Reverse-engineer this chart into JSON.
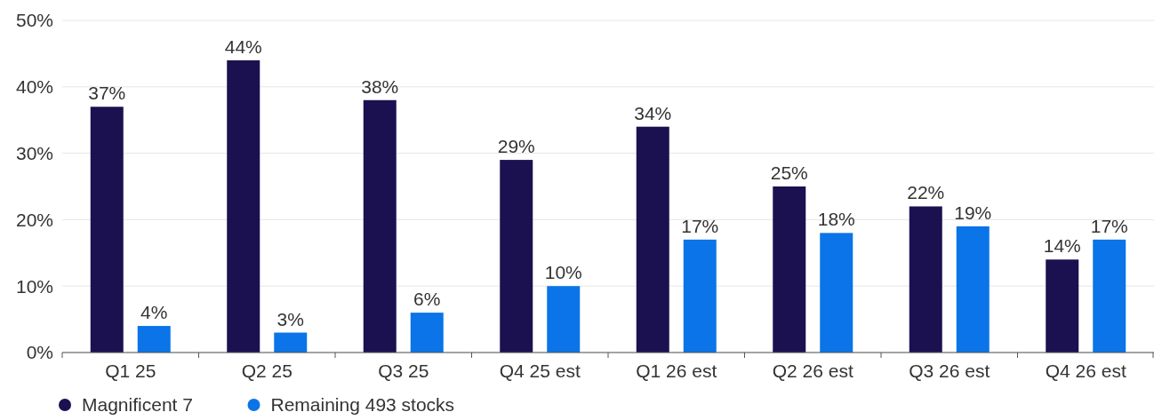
{
  "chart_data": {
    "type": "bar",
    "categories": [
      "Q1 25",
      "Q2 25",
      "Q3 25",
      "Q4 25 est",
      "Q1 26 est",
      "Q2 26 est",
      "Q3 26 est",
      "Q4 26 est"
    ],
    "series": [
      {
        "name": "Magnificent 7",
        "color": "#1b1150",
        "values": [
          37,
          44,
          38,
          29,
          34,
          25,
          22,
          14
        ],
        "value_labels": [
          "37%",
          "44%",
          "38%",
          "29%",
          "34%",
          "25%",
          "22%",
          "14%"
        ]
      },
      {
        "name": "Remaining 493 stocks",
        "color": "#0a74e8",
        "values": [
          4,
          3,
          6,
          10,
          17,
          18,
          19,
          17
        ],
        "value_labels": [
          "4%",
          "3%",
          "6%",
          "10%",
          "17%",
          "18%",
          "19%",
          "17%"
        ]
      }
    ],
    "ylim": [
      0,
      50
    ],
    "yticks": [
      {
        "value": 0,
        "label": "0%"
      },
      {
        "value": 10,
        "label": "10%"
      },
      {
        "value": 20,
        "label": "20%"
      },
      {
        "value": 30,
        "label": "30%"
      },
      {
        "value": 40,
        "label": "40%"
      },
      {
        "value": 50,
        "label": "50%"
      }
    ],
    "grid": "y",
    "legend": "bottom left"
  }
}
